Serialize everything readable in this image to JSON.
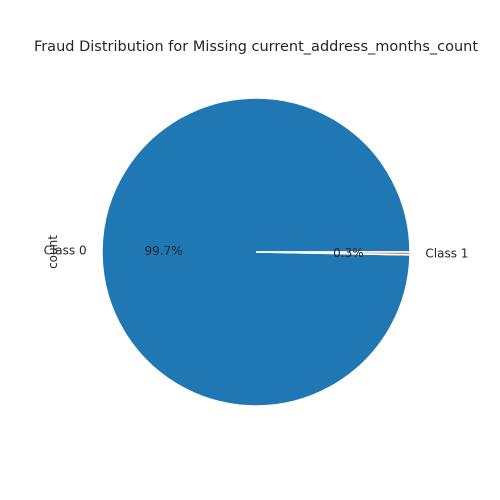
{
  "chart_data": {
    "type": "pie",
    "title": "Fraud Distribution for Missing current_address_months_count",
    "ylabel": "count",
    "categories": [
      "Class 0",
      "Class 1"
    ],
    "values": [
      99.7,
      0.3
    ],
    "percent_labels": [
      "99.7%",
      "0.3%"
    ],
    "colors": [
      "#1f77b4",
      "#dd8452"
    ],
    "wedge_edge_color": "#ffffff",
    "start_angle_deg": 0,
    "legend": false
  }
}
